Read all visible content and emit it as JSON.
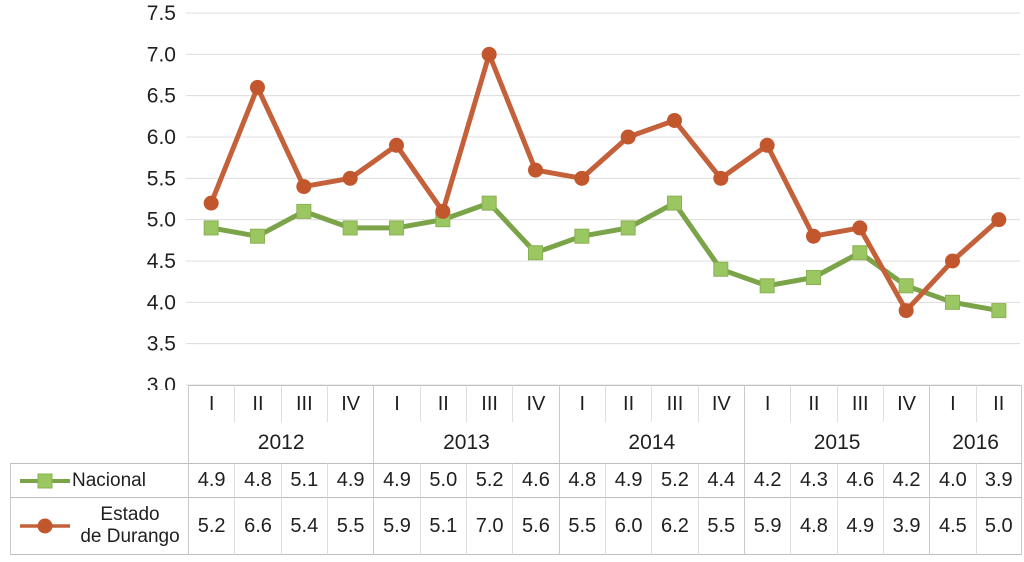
{
  "chart_data": {
    "type": "line",
    "title": "",
    "ylabel": "",
    "xlabel": "",
    "ylim": [
      3.0,
      7.5
    ],
    "ytick_step": 0.5,
    "yticks": [
      "7.5",
      "7.0",
      "6.5",
      "6.0",
      "5.5",
      "5.0",
      "4.5",
      "4.0",
      "3.5",
      "3.0"
    ],
    "grid": true,
    "legend_position": "table-left",
    "years": [
      {
        "label": "2012",
        "quarters": [
          "I",
          "II",
          "III",
          "IV"
        ]
      },
      {
        "label": "2013",
        "quarters": [
          "I",
          "II",
          "III",
          "IV"
        ]
      },
      {
        "label": "2014",
        "quarters": [
          "I",
          "II",
          "III",
          "IV"
        ]
      },
      {
        "label": "2015",
        "quarters": [
          "I",
          "II",
          "III",
          "IV"
        ]
      },
      {
        "label": "2016",
        "quarters": [
          "I",
          "II"
        ]
      }
    ],
    "x_quarters": [
      "I",
      "II",
      "III",
      "IV",
      "I",
      "II",
      "III",
      "IV",
      "I",
      "II",
      "III",
      "IV",
      "I",
      "II",
      "III",
      "IV",
      "I",
      "II"
    ],
    "series": [
      {
        "name": "Nacional",
        "legend_label": "Nacional",
        "color": "#7ba348",
        "marker": "square",
        "marker_fill": "#9bc763",
        "values": [
          "4.9",
          "4.8",
          "5.1",
          "4.9",
          "4.9",
          "5.0",
          "5.2",
          "4.6",
          "4.8",
          "4.9",
          "5.2",
          "4.4",
          "4.2",
          "4.3",
          "4.6",
          "4.2",
          "4.0",
          "3.9"
        ]
      },
      {
        "name": "Estado de Durango",
        "legend_label": "Estado\nde Durango",
        "color": "#c4603a",
        "marker": "circle",
        "marker_fill": "#c2572e",
        "values": [
          "5.2",
          "6.6",
          "5.4",
          "5.5",
          "5.9",
          "5.1",
          "7.0",
          "5.6",
          "5.5",
          "6.0",
          "6.2",
          "5.5",
          "5.9",
          "4.8",
          "4.9",
          "3.9",
          "4.5",
          "5.0"
        ]
      }
    ],
    "colors": {
      "gridline": "#dcdcdc",
      "axis_text": "#1f1f1f",
      "table_border_h": "#bdbdbd",
      "table_border_v": "#c9c9c9"
    }
  }
}
